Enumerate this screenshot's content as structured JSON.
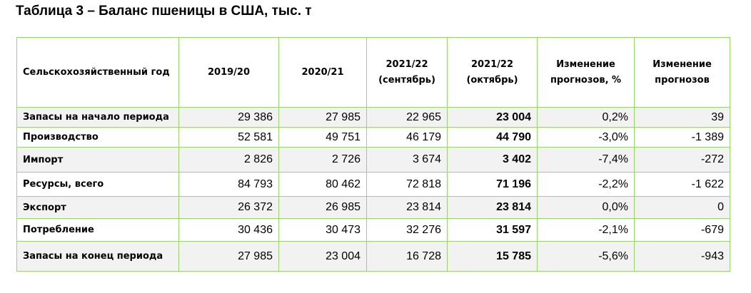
{
  "title": "Таблица 3 – Баланс пшеницы в США, тыс. т",
  "table": {
    "header": [
      [
        "Сельскохозяйственный год"
      ],
      [
        "2019/20"
      ],
      [
        "2020/21"
      ],
      [
        "2021/22",
        "(сентябрь)"
      ],
      [
        "2021/22",
        "(октябрь)"
      ],
      [
        "Изменение",
        "прогнозов, %"
      ],
      [
        "Изменение",
        "прогнозов"
      ]
    ],
    "rows": [
      [
        "Запасы на начало периода",
        "29 386",
        "27 985",
        "22 965",
        "23 004",
        "0,2%",
        "39"
      ],
      [
        "Производство",
        "52 581",
        "49 751",
        "46 179",
        "44 790",
        "-3,0%",
        "-1 389"
      ],
      [
        "Импорт",
        "2 826",
        "2 726",
        "3 674",
        "3 402",
        "-7,4%",
        "-272"
      ],
      [
        "Ресурсы, всего",
        "84 793",
        "80 462",
        "72 818",
        "71 196",
        "-2,2%",
        "-1 622"
      ],
      [
        "Экспорт",
        "26 372",
        "26 985",
        "23 814",
        "23 814",
        "0,0%",
        "0"
      ],
      [
        "Потребление",
        "30 436",
        "30 473",
        "32 276",
        "31 597",
        "-2,1%",
        "-679"
      ],
      [
        "Запасы на конец периода",
        "27 985",
        "23 004",
        "16 728",
        "15 785",
        "-5,6%",
        "-943"
      ]
    ]
  }
}
